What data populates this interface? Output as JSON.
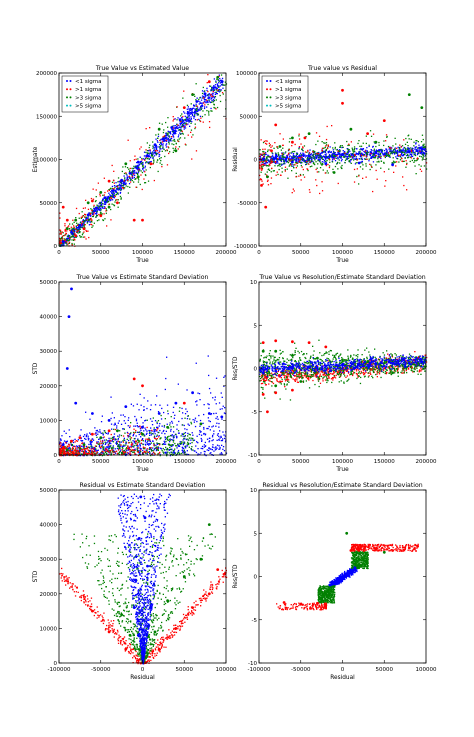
{
  "colors": {
    "sigma1": "#0000ff",
    "sigma2": "#ff0000",
    "sigma3": "#008000",
    "sigma5": "#00bfbf",
    "axis": "#000000",
    "background": "#ffffff"
  },
  "legend_labels": [
    "<1 sigma",
    ">1 sigma",
    ">3 sigma",
    ">5 sigma"
  ],
  "chart_data": [
    {
      "id": "p1",
      "type": "scatter",
      "title": "True Value vs Estimated Value",
      "xlabel": "True",
      "ylabel": "Estimate",
      "xlim": [
        0,
        200000
      ],
      "ylim": [
        0,
        200000
      ],
      "xticks": [
        0,
        50000,
        100000,
        150000,
        200000
      ],
      "yticks": [
        0,
        50000,
        100000,
        150000,
        200000
      ],
      "legend": "top-left",
      "series": [
        {
          "name": "<1 sigma",
          "color": "#0000ff",
          "points": [
            [
              5000,
              5000
            ],
            [
              15000,
              16000
            ],
            [
              25000,
              24000
            ],
            [
              35000,
              36000
            ],
            [
              45000,
              44000
            ],
            [
              55000,
              56000
            ],
            [
              65000,
              64000
            ],
            [
              75000,
              76000
            ],
            [
              85000,
              84000
            ],
            [
              95000,
              97000
            ],
            [
              105000,
              104000
            ],
            [
              115000,
              117000
            ],
            [
              125000,
              124000
            ],
            [
              135000,
              137000
            ],
            [
              145000,
              146000
            ],
            [
              155000,
              154000
            ],
            [
              165000,
              167000
            ],
            [
              175000,
              176000
            ],
            [
              185000,
              183000
            ],
            [
              195000,
              190000
            ]
          ]
        },
        {
          "name": ">1 sigma",
          "color": "#ff0000",
          "points": [
            [
              5000,
              45000
            ],
            [
              10000,
              30000
            ],
            [
              20000,
              12000
            ],
            [
              30000,
              20000
            ],
            [
              40000,
              52000
            ],
            [
              50000,
              35000
            ],
            [
              60000,
              75000
            ],
            [
              70000,
              50000
            ],
            [
              90000,
              30000
            ],
            [
              100000,
              30000
            ],
            [
              110000,
              95000
            ],
            [
              150000,
              160000
            ],
            [
              180000,
              190000
            ]
          ]
        },
        {
          "name": ">3 sigma",
          "color": "#008000",
          "points": [
            [
              10000,
              20000
            ],
            [
              20000,
              30000
            ],
            [
              35000,
              50000
            ],
            [
              50000,
              62000
            ],
            [
              60000,
              45000
            ],
            [
              80000,
              95000
            ],
            [
              95000,
              80000
            ],
            [
              120000,
              135000
            ],
            [
              140000,
              110000
            ],
            [
              160000,
              175000
            ],
            [
              190000,
              195000
            ]
          ]
        },
        {
          "name": ">5 sigma",
          "color": "#00bfbf",
          "points": []
        }
      ]
    },
    {
      "id": "p2",
      "type": "scatter",
      "title": "True value vs Residual",
      "xlabel": "True",
      "ylabel": "Residual",
      "xlim": [
        0,
        200000
      ],
      "ylim": [
        -100000,
        100000
      ],
      "xticks": [
        0,
        50000,
        100000,
        150000,
        200000
      ],
      "yticks": [
        -100000,
        -50000,
        0,
        50000,
        100000
      ],
      "legend": "top-left",
      "series": [
        {
          "name": "<1 sigma",
          "color": "#0000ff",
          "points": [
            [
              5000,
              0
            ],
            [
              20000,
              2000
            ],
            [
              40000,
              -3000
            ],
            [
              60000,
              4000
            ],
            [
              80000,
              -5000
            ],
            [
              100000,
              6000
            ],
            [
              120000,
              -4000
            ],
            [
              140000,
              8000
            ],
            [
              160000,
              -6000
            ],
            [
              180000,
              9000
            ],
            [
              195000,
              12000
            ]
          ]
        },
        {
          "name": ">1 sigma",
          "color": "#ff0000",
          "points": [
            [
              3000,
              -30000
            ],
            [
              8000,
              -55000
            ],
            [
              15000,
              10000
            ],
            [
              20000,
              40000
            ],
            [
              40000,
              20000
            ],
            [
              55000,
              25000
            ],
            [
              100000,
              65000
            ],
            [
              100000,
              80000
            ],
            [
              130000,
              30000
            ],
            [
              150000,
              45000
            ]
          ]
        },
        {
          "name": ">3 sigma",
          "color": "#008000",
          "points": [
            [
              10000,
              -20000
            ],
            [
              25000,
              15000
            ],
            [
              40000,
              25000
            ],
            [
              60000,
              30000
            ],
            [
              90000,
              -15000
            ],
            [
              110000,
              35000
            ],
            [
              140000,
              20000
            ],
            [
              180000,
              75000
            ],
            [
              195000,
              60000
            ]
          ]
        },
        {
          "name": ">5 sigma",
          "color": "#00bfbf",
          "points": []
        }
      ]
    },
    {
      "id": "p3",
      "type": "scatter",
      "title": "True Value vs Estimate Standard Deviation",
      "xlabel": "True",
      "ylabel": "STD",
      "xlim": [
        0,
        200000
      ],
      "ylim": [
        0,
        50000
      ],
      "xticks": [
        0,
        50000,
        100000,
        150000,
        200000
      ],
      "yticks": [
        0,
        10000,
        20000,
        30000,
        40000,
        50000
      ],
      "legend": "none",
      "series": [
        {
          "name": "<1 sigma",
          "color": "#0000ff",
          "points": [
            [
              5000,
              3000
            ],
            [
              10000,
              25000
            ],
            [
              12000,
              40000
            ],
            [
              15000,
              48000
            ],
            [
              20000,
              15000
            ],
            [
              40000,
              12000
            ],
            [
              60000,
              10000
            ],
            [
              80000,
              14000
            ],
            [
              100000,
              8000
            ],
            [
              120000,
              12000
            ],
            [
              140000,
              15000
            ],
            [
              160000,
              18000
            ],
            [
              180000,
              12000
            ],
            [
              195000,
              11000
            ]
          ]
        },
        {
          "name": ">1 sigma",
          "color": "#ff0000",
          "points": [
            [
              5000,
              2000
            ],
            [
              15000,
              4000
            ],
            [
              25000,
              5000
            ],
            [
              40000,
              6000
            ],
            [
              60000,
              7000
            ],
            [
              90000,
              22000
            ],
            [
              100000,
              20000
            ],
            [
              150000,
              15000
            ]
          ]
        },
        {
          "name": ">3 sigma",
          "color": "#008000",
          "points": [
            [
              10000,
              1500
            ],
            [
              30000,
              3000
            ],
            [
              50000,
              5000
            ],
            [
              70000,
              7000
            ],
            [
              100000,
              6000
            ],
            [
              130000,
              8000
            ],
            [
              170000,
              9000
            ]
          ]
        },
        {
          "name": ">5 sigma",
          "color": "#00bfbf",
          "points": []
        }
      ]
    },
    {
      "id": "p4",
      "type": "scatter",
      "title": "True Value vs Resolution/Estimate Standard Deviation",
      "xlabel": "True",
      "ylabel": "Res/STD",
      "xlim": [
        0,
        200000
      ],
      "ylim": [
        -10,
        10
      ],
      "xticks": [
        0,
        50000,
        100000,
        150000,
        200000
      ],
      "yticks": [
        -10,
        -5,
        0,
        5,
        10
      ],
      "legend": "none",
      "series": [
        {
          "name": "<1 sigma",
          "color": "#0000ff",
          "points": [
            [
              5000,
              -0.5
            ],
            [
              20000,
              -0.3
            ],
            [
              40000,
              0
            ],
            [
              60000,
              0.2
            ],
            [
              80000,
              0.3
            ],
            [
              100000,
              0.4
            ],
            [
              120000,
              0.5
            ],
            [
              140000,
              0.5
            ],
            [
              160000,
              0.6
            ],
            [
              180000,
              0.6
            ],
            [
              195000,
              0.8
            ]
          ]
        },
        {
          "name": ">1 sigma",
          "color": "#ff0000",
          "points": [
            [
              5000,
              3
            ],
            [
              20000,
              3.2
            ],
            [
              40000,
              3.1
            ],
            [
              60000,
              3
            ],
            [
              80000,
              2.5
            ],
            [
              5000,
              -3
            ],
            [
              20000,
              -2.8
            ],
            [
              40000,
              -2.5
            ],
            [
              10000,
              -5
            ]
          ]
        },
        {
          "name": ">3 sigma",
          "color": "#008000",
          "points": [
            [
              5000,
              2
            ],
            [
              20000,
              2
            ],
            [
              40000,
              1.5
            ],
            [
              70000,
              1.2
            ],
            [
              100000,
              1
            ],
            [
              130000,
              0.8
            ],
            [
              160000,
              -0.5
            ],
            [
              20000,
              -2
            ],
            [
              50000,
              -1.5
            ]
          ]
        },
        {
          "name": ">5 sigma",
          "color": "#00bfbf",
          "points": []
        }
      ]
    },
    {
      "id": "p5",
      "type": "scatter",
      "title": "Residual vs Estimate Standard Deviation",
      "xlabel": "Residual",
      "ylabel": "STD",
      "xlim": [
        -100000,
        100000
      ],
      "ylim": [
        0,
        50000
      ],
      "xticks": [
        -100000,
        -50000,
        0,
        50000,
        100000
      ],
      "yticks": [
        0,
        10000,
        20000,
        30000,
        40000,
        50000
      ],
      "legend": "none",
      "series": [
        {
          "name": "<1 sigma",
          "color": "#0000ff",
          "points": [
            [
              0,
              1000
            ],
            [
              -5000,
              8000
            ],
            [
              5000,
              8000
            ],
            [
              -10000,
              16000
            ],
            [
              10000,
              16000
            ],
            [
              -8000,
              24000
            ],
            [
              6000,
              28000
            ],
            [
              -4000,
              36000
            ],
            [
              3000,
              42000
            ],
            [
              -2000,
              48000
            ]
          ]
        },
        {
          "name": ">1 sigma",
          "color": "#ff0000",
          "points": [
            [
              -20000,
              4000
            ],
            [
              20000,
              4000
            ],
            [
              -40000,
              9000
            ],
            [
              40000,
              10000
            ],
            [
              -60000,
              15000
            ],
            [
              60000,
              16000
            ],
            [
              80000,
              20000
            ],
            [
              90000,
              27000
            ]
          ]
        },
        {
          "name": ">3 sigma",
          "color": "#008000",
          "points": [
            [
              -15000,
              8000
            ],
            [
              15000,
              9000
            ],
            [
              -25000,
              14000
            ],
            [
              30000,
              18000
            ],
            [
              50000,
              25000
            ],
            [
              70000,
              30000
            ],
            [
              80000,
              40000
            ]
          ]
        },
        {
          "name": ">5 sigma",
          "color": "#00bfbf",
          "points": []
        }
      ]
    },
    {
      "id": "p6",
      "type": "scatter",
      "title": "Residual vs Resolution/Estimate Standard Deviation",
      "xlabel": "Residual",
      "ylabel": "Res/STD",
      "xlim": [
        -100000,
        100000
      ],
      "ylim": [
        -10,
        10
      ],
      "xticks": [
        -100000,
        -50000,
        0,
        50000,
        100000
      ],
      "yticks": [
        -10,
        -5,
        0,
        5,
        10
      ],
      "legend": "none",
      "series": [
        {
          "name": "<1 sigma",
          "color": "#0000ff",
          "points": [
            [
              -15000,
              -1
            ],
            [
              -10000,
              -0.7
            ],
            [
              -5000,
              -0.3
            ],
            [
              0,
              0
            ],
            [
              5000,
              0.3
            ],
            [
              10000,
              0.7
            ],
            [
              15000,
              1
            ]
          ]
        },
        {
          "name": ">1 sigma",
          "color": "#ff0000",
          "points": [
            [
              -70000,
              -3
            ],
            [
              -50000,
              -3.2
            ],
            [
              -30000,
              -3.1
            ],
            [
              -20000,
              -3.3
            ],
            [
              10000,
              3
            ],
            [
              20000,
              3.1
            ],
            [
              40000,
              3.2
            ],
            [
              60000,
              3
            ],
            [
              80000,
              3.3
            ],
            [
              90000,
              3.5
            ]
          ]
        },
        {
          "name": ">3 sigma",
          "color": "#008000",
          "points": [
            [
              -25000,
              -2.5
            ],
            [
              -20000,
              -2
            ],
            [
              -15000,
              -1.5
            ],
            [
              15000,
              1.5
            ],
            [
              20000,
              2
            ],
            [
              30000,
              2.5
            ],
            [
              50000,
              2.8
            ],
            [
              5000,
              5
            ]
          ]
        },
        {
          "name": ">5 sigma",
          "color": "#00bfbf",
          "points": []
        }
      ]
    }
  ]
}
